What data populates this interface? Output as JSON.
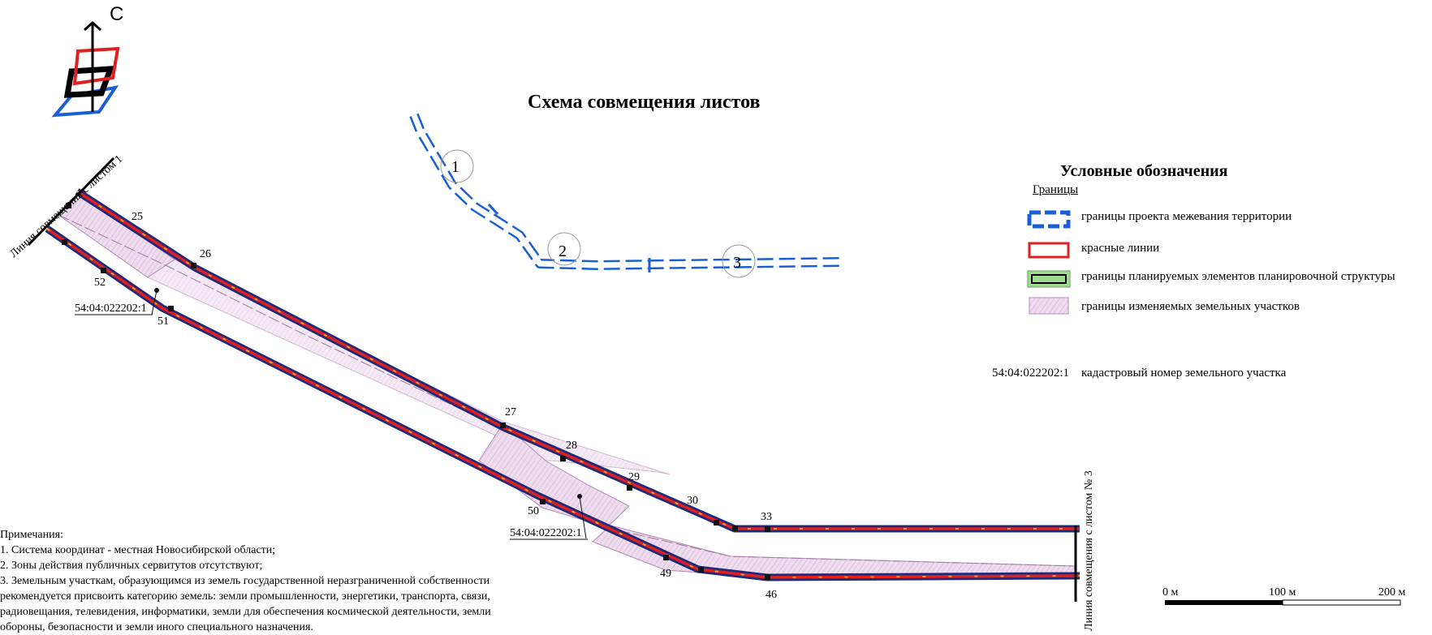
{
  "title": "Схема совмещения листов",
  "north_label": "С",
  "overview": {
    "sheet_numbers": [
      "1",
      "2",
      "3"
    ]
  },
  "legend": {
    "title": "Условные обозначения",
    "subtitle": "Границы",
    "items": [
      {
        "icon": "blue-dashed-boundary-icon",
        "text": "границы проекта межевания территории",
        "color": "#1a5fd6"
      },
      {
        "icon": "red-line-icon",
        "text": "красные линии",
        "color": "#e02020"
      },
      {
        "icon": "green-outline-icon",
        "text": "границы планируемых элементов планировочной структуры",
        "color": "#9fdc8f"
      },
      {
        "icon": "pink-hatch-icon",
        "text": "границы изменяемых земельных участков",
        "color": "#e8cce8"
      }
    ],
    "cadastral_example": "54:04:022202:1",
    "cadastral_desc": "кадастровый номер земельного участка"
  },
  "map": {
    "joint_left": "Линия совмещения с листом 1",
    "joint_right": "Линия совмещения с листом № 3",
    "cadastral_labels": [
      "54:04:022202:1",
      "54:04:022202:1"
    ],
    "point_labels": [
      "25",
      "26",
      "27",
      "28",
      "29",
      "30",
      "33",
      "52",
      "51",
      "50",
      "49",
      "46"
    ]
  },
  "notes": [
    "Примечания:",
    "1. Система координат - местная Новосибирской области;",
    "2. Зоны действия публичных сервитутов отсутствуют;",
    "3. Земельным участкам, образующимся из земель государственной неразграниченной собственности",
    "рекомендуется присвоить категорию земель: земли промышленности, энергетики, транспорта, связи,",
    "радиовещания, телевидения, информатики, земли для обеспечения космической деятельности, земли",
    "обороны, безопасности и земли иного специального назначения."
  ],
  "scale_bar": {
    "labels": [
      "0 м",
      "100 м",
      "200 м"
    ]
  },
  "colors": {
    "boundary_blue": "#1a5fd6",
    "red_line": "#e02020",
    "road_navy": "#1f2a7a",
    "marker_orange": "#f0a020",
    "parcel_pink": "#e8cce8"
  }
}
